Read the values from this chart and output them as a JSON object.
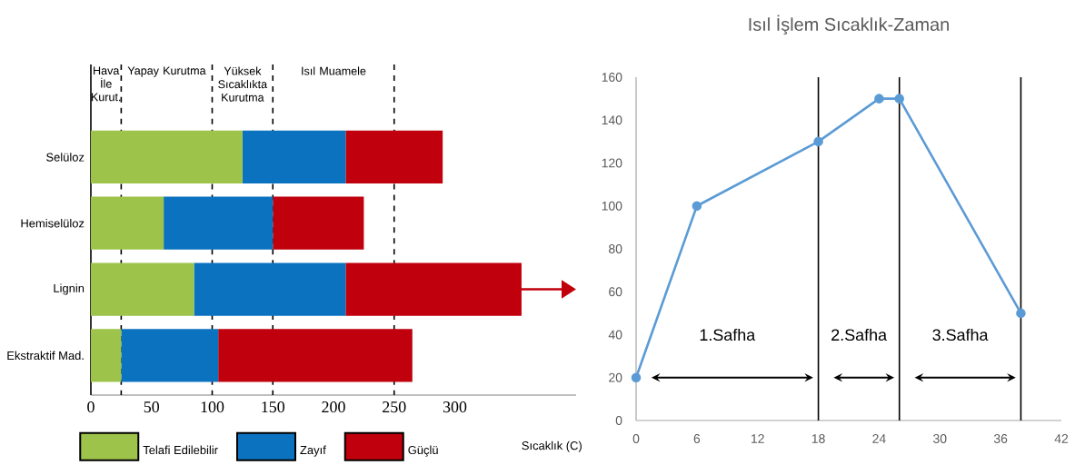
{
  "chart_data": [
    {
      "type": "bar",
      "orientation": "horizontal",
      "stacked": true,
      "categories": [
        "Selüloz",
        "Hemiselüloz",
        "Lignin",
        "Ekstraktif Mad."
      ],
      "series": [
        {
          "name": "Telafi Edilebilir",
          "color": "#9dc34a",
          "values": [
            125,
            60,
            85,
            25
          ]
        },
        {
          "name": "Zayıf",
          "color": "#0b72c0",
          "values": [
            85,
            90,
            125,
            80
          ]
        },
        {
          "name": "Güçlü",
          "color": "#c0000c",
          "values": [
            80,
            75,
            145,
            160
          ]
        }
      ],
      "xlim": [
        0,
        400
      ],
      "xticks": [
        0,
        50,
        100,
        150,
        200,
        250,
        300
      ],
      "xlabel": "Sıcaklık (C)",
      "legend": "bottom",
      "ref_lines": [
        {
          "axis": "x",
          "value": 25,
          "label": "Hava İle Kurut.",
          "line_style": "dashed",
          "color": "#000000"
        },
        {
          "axis": "x",
          "value": 100,
          "label": "Yapay Kurutma",
          "line_style": "dashed",
          "color": "#000000"
        },
        {
          "axis": "x",
          "value": 150,
          "label": "Yüksek Sıcaklıkta Kurutma",
          "line_style": "dashed",
          "color": "#000000"
        },
        {
          "axis": "x",
          "value": 250,
          "label": "Isıl Muamele",
          "line_style": "dashed",
          "color": "#000000"
        }
      ]
    },
    {
      "type": "line",
      "title": "Isıl İşlem Sıcaklık-Zaman",
      "x": [
        0,
        6,
        18,
        24,
        26,
        38
      ],
      "series": [
        {
          "color": "#5b9bd5",
          "values": [
            20,
            100,
            130,
            150,
            150,
            50
          ]
        }
      ],
      "xlim": [
        0,
        42
      ],
      "xticks": [
        0,
        6,
        12,
        18,
        24,
        30,
        36,
        42
      ],
      "ylim": [
        0,
        160
      ],
      "yticks": [
        0,
        20,
        40,
        60,
        80,
        100,
        120,
        140,
        160
      ],
      "marker": "circle",
      "line_style": "solid",
      "ref_lines": [
        {
          "axis": "x",
          "value": 18,
          "color": "#000000"
        },
        {
          "axis": "x",
          "value": 26,
          "color": "#000000"
        },
        {
          "axis": "x",
          "value": 38,
          "color": "#000000"
        }
      ],
      "annotations": [
        "1.Safha",
        "2.Safha",
        "3.Safha"
      ]
    }
  ]
}
